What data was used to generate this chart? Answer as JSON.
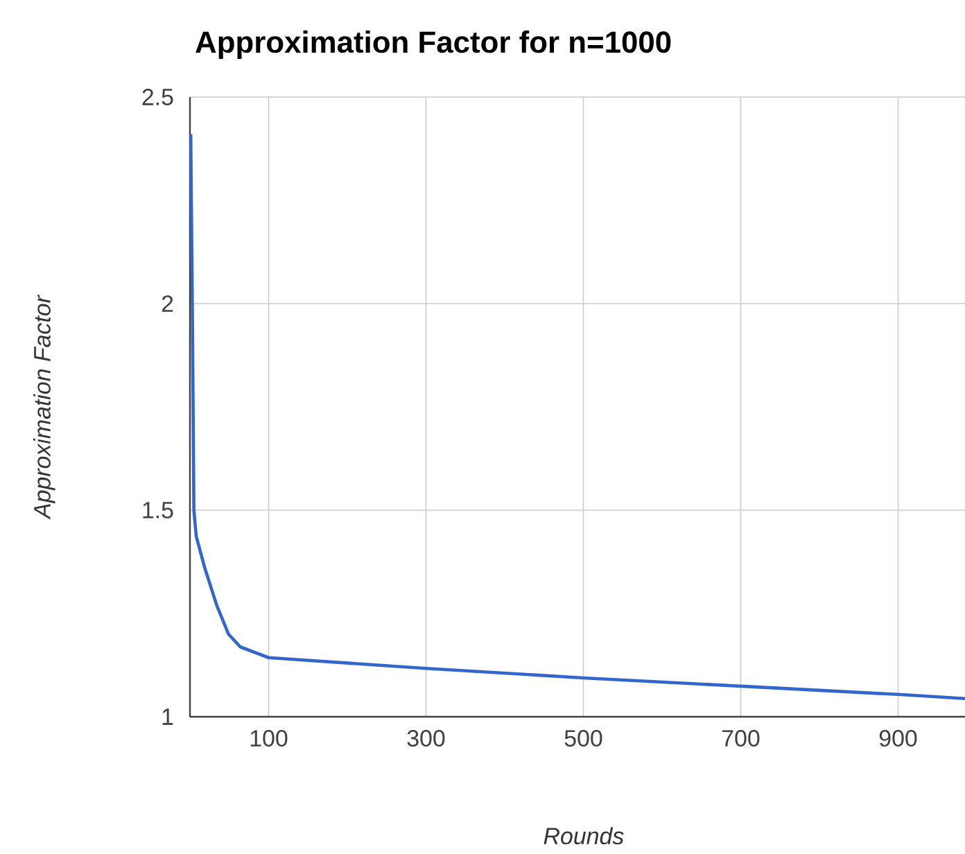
{
  "chart_data": {
    "type": "line",
    "title": "Approximation Factor for n=1000",
    "xlabel": "Rounds",
    "ylabel": "Approximation Factor",
    "x": [
      1,
      3,
      5,
      8,
      19,
      34,
      49,
      64,
      100,
      300,
      500,
      700,
      900,
      985
    ],
    "values": [
      2.41,
      2.0,
      1.5,
      1.437,
      1.359,
      1.27,
      1.2,
      1.169,
      1.143,
      1.117,
      1.094,
      1.074,
      1.054,
      1.044
    ],
    "color": "#3366cc",
    "xlim": [
      0,
      985
    ],
    "ylim": [
      1,
      2.5
    ],
    "xticks": [
      100,
      300,
      500,
      700,
      900
    ],
    "yticks": [
      1,
      1.5,
      2,
      2.5
    ],
    "grid": true,
    "marker": "none",
    "line_style": "solid"
  }
}
